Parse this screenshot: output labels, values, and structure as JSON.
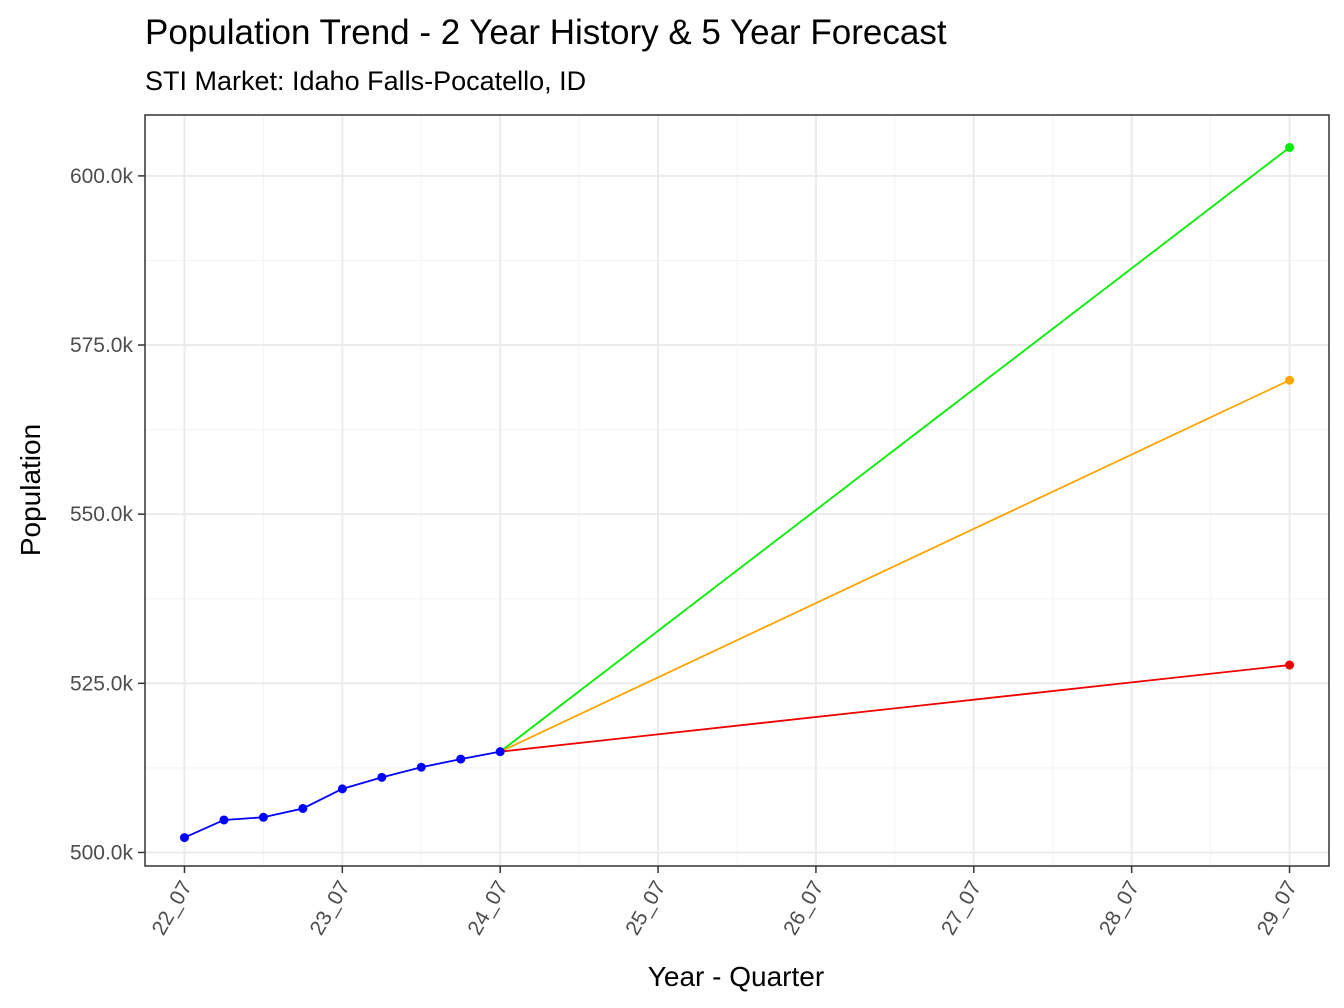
{
  "chart_data": {
    "type": "line",
    "title": "Population Trend - 2 Year History & 5 Year Forecast",
    "subtitle": "STI Market: Idaho Falls-Pocatello, ID",
    "xlabel": "Year - Quarter",
    "ylabel": "Population",
    "x_ticks": [
      "22_07",
      "23_07",
      "24_07",
      "25_07",
      "26_07",
      "27_07",
      "28_07",
      "29_07"
    ],
    "y_ticks": [
      {
        "value": 500000,
        "label": "500.0k"
      },
      {
        "value": 525000,
        "label": "525.0k"
      },
      {
        "value": 550000,
        "label": "550.0k"
      },
      {
        "value": 575000,
        "label": "575.0k"
      },
      {
        "value": 600000,
        "label": "600.0k"
      }
    ],
    "ylim": [
      498000,
      609000
    ],
    "xlim": [
      "22_04",
      "29_10"
    ],
    "grid": true,
    "series": [
      {
        "color": "#0000ff",
        "points": [
          {
            "x": "22_07",
            "y": 502200
          },
          {
            "x": "22_10",
            "y": 504800
          },
          {
            "x": "23_01",
            "y": 505200
          },
          {
            "x": "23_04",
            "y": 506500
          },
          {
            "x": "23_07",
            "y": 509400
          },
          {
            "x": "23_10",
            "y": 511100
          },
          {
            "x": "24_01",
            "y": 512600
          },
          {
            "x": "24_04",
            "y": 513800
          },
          {
            "x": "24_07",
            "y": 514900
          }
        ]
      },
      {
        "color": "#00ee00",
        "points": [
          {
            "x": "24_07",
            "y": 514900
          },
          {
            "x": "29_07",
            "y": 604200
          }
        ]
      },
      {
        "color": "#ffa500",
        "points": [
          {
            "x": "24_07",
            "y": 514900
          },
          {
            "x": "29_07",
            "y": 569800
          }
        ]
      },
      {
        "color": "#ee0000",
        "points": [
          {
            "x": "24_07",
            "y": 514900
          },
          {
            "x": "29_07",
            "y": 527700
          }
        ]
      }
    ]
  }
}
